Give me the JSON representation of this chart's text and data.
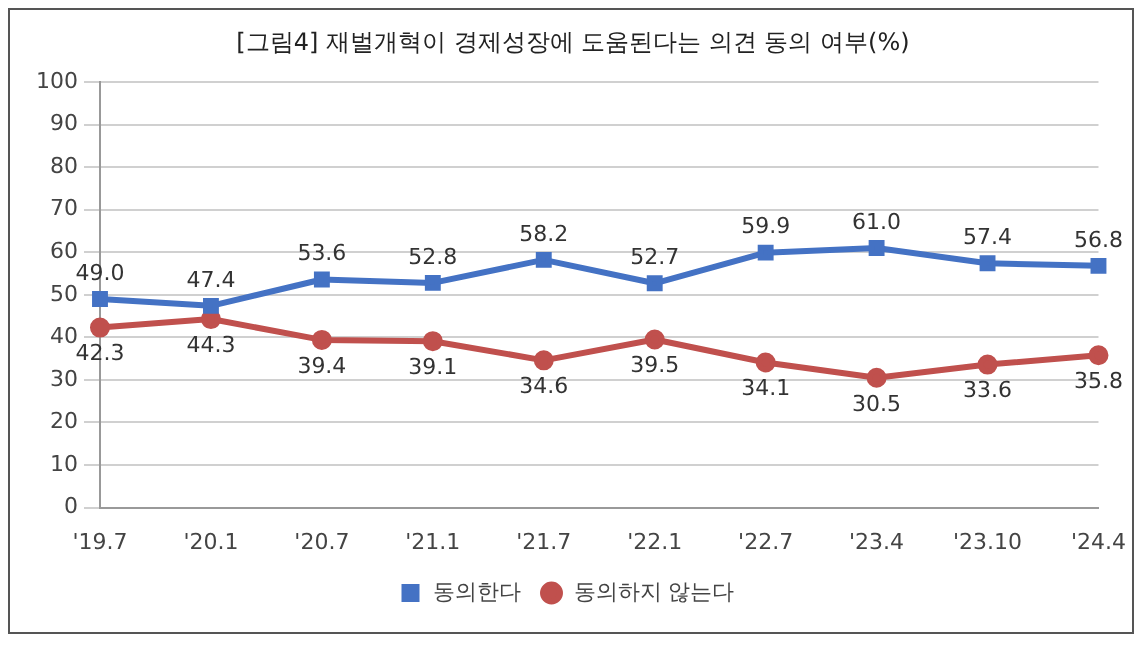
{
  "chart_data": {
    "type": "line",
    "title": "[그림4] 재벌개혁이 경제성장에 도움된다는 의견 동의 여부(%)",
    "categories": [
      "'19.7",
      "'20.1",
      "'20.7",
      "'21.1",
      "'21.7",
      "'22.1",
      "'22.7",
      "'23.4",
      "'23.10",
      "'24.4"
    ],
    "series": [
      {
        "name": "동의한다",
        "color": "#4472c4",
        "marker": "square",
        "values": [
          49.0,
          47.4,
          53.6,
          52.8,
          58.2,
          52.7,
          59.9,
          61.0,
          57.4,
          56.8
        ],
        "value_labels": [
          "49.0",
          "47.4",
          "53.6",
          "52.8",
          "58.2",
          "52.7",
          "59.9",
          "61.0",
          "57.4",
          "56.8"
        ]
      },
      {
        "name": "동의하지 않는다",
        "color": "#c0504d",
        "marker": "circle",
        "values": [
          42.3,
          44.3,
          39.4,
          39.1,
          34.6,
          39.5,
          34.1,
          30.5,
          33.6,
          35.8
        ],
        "value_labels": [
          "42.3",
          "44.3",
          "39.4",
          "39.1",
          "34.6",
          "39.5",
          "34.1",
          "30.5",
          "33.6",
          "35.8"
        ]
      }
    ],
    "ylim": [
      0,
      100
    ],
    "yticks": [
      0,
      10,
      20,
      30,
      40,
      50,
      60,
      70,
      80,
      90,
      100
    ],
    "grid": "y",
    "legend": "bottom"
  }
}
